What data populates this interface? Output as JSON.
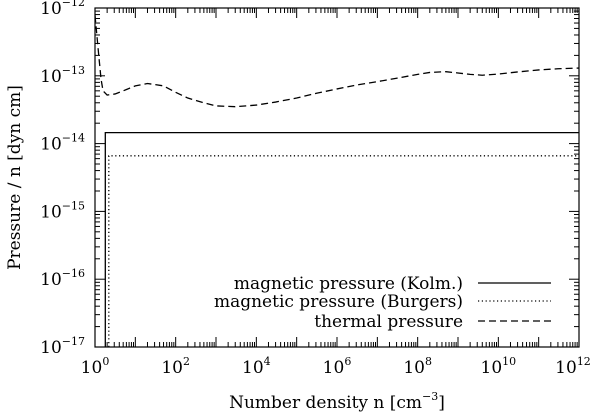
{
  "chart_data": {
    "type": "line",
    "x_scale": "log",
    "y_scale": "log",
    "xlim": [
      1,
      1000000000000.0
    ],
    "ylim": [
      1e-17,
      1e-12
    ],
    "grid": false,
    "legend_position": "bottom-right",
    "xlabel": "Number density n [cm",
    "xlabel_sup": "−3",
    "xlabel_tail": "]",
    "ylabel": "Pressure / n [dyn cm]",
    "x_ticks": [
      {
        "value": 1,
        "base": "10",
        "exp": "0"
      },
      {
        "value": 100,
        "base": "10",
        "exp": "2"
      },
      {
        "value": 10000,
        "base": "10",
        "exp": "4"
      },
      {
        "value": 1000000,
        "base": "10",
        "exp": "6"
      },
      {
        "value": 100000000,
        "base": "10",
        "exp": "8"
      },
      {
        "value": 10000000000,
        "base": "10",
        "exp": "10"
      },
      {
        "value": 1000000000000,
        "base": "10",
        "exp": "12"
      }
    ],
    "y_ticks": [
      {
        "value": 1e-17,
        "base": "10",
        "exp": "−17"
      },
      {
        "value": 1e-16,
        "base": "10",
        "exp": "−16"
      },
      {
        "value": 1e-15,
        "base": "10",
        "exp": "−15"
      },
      {
        "value": 1e-14,
        "base": "10",
        "exp": "−14"
      },
      {
        "value": 1e-13,
        "base": "10",
        "exp": "−13"
      },
      {
        "value": 1e-12,
        "base": "10",
        "exp": "−12"
      }
    ],
    "series": [
      {
        "name": "magnetic pressure (Kolm.)",
        "style": "solid",
        "x": [
          1.8,
          1.8,
          1000000000000.0
        ],
        "y": [
          1e-17,
          1.45e-14,
          1.45e-14
        ]
      },
      {
        "name": "magnetic pressure (Burgers)",
        "style": "dotted",
        "x": [
          2.2,
          2.2,
          1000000000000.0
        ],
        "y": [
          1e-17,
          6.6e-15,
          6.6e-15
        ]
      },
      {
        "name": "thermal pressure",
        "style": "dashed",
        "x": [
          1,
          1.26,
          1.41,
          1.58,
          2.0,
          3.16,
          5.0,
          10,
          20,
          50,
          100,
          200,
          500,
          1000,
          3000,
          10000,
          30000,
          100000,
          300000,
          1000000,
          3000000,
          10000000,
          30000000,
          100000000,
          200000000,
          500000000,
          1000000000,
          2000000000,
          4000000000,
          10000000000,
          30000000000,
          100000000000,
          300000000000,
          1000000000000
        ],
        "y": [
          7.8e-13,
          1.8e-13,
          9e-14,
          6e-14,
          5.2e-14,
          5.4e-14,
          6e-14,
          7.1e-14,
          7.7e-14,
          7.1e-14,
          5.7e-14,
          4.7e-14,
          4e-14,
          3.6e-14,
          3.5e-14,
          3.7e-14,
          4.1e-14,
          4.7e-14,
          5.5e-14,
          6.4e-14,
          7.3e-14,
          8.2e-14,
          9.2e-14,
          1.05e-13,
          1.12e-13,
          1.15e-13,
          1.1e-13,
          1.05e-13,
          1.02e-13,
          1.06e-13,
          1.14e-13,
          1.22e-13,
          1.27e-13,
          1.3e-13
        ]
      }
    ]
  },
  "colors": {
    "axis": "#000000",
    "line": "#000000",
    "background": "#ffffff"
  }
}
